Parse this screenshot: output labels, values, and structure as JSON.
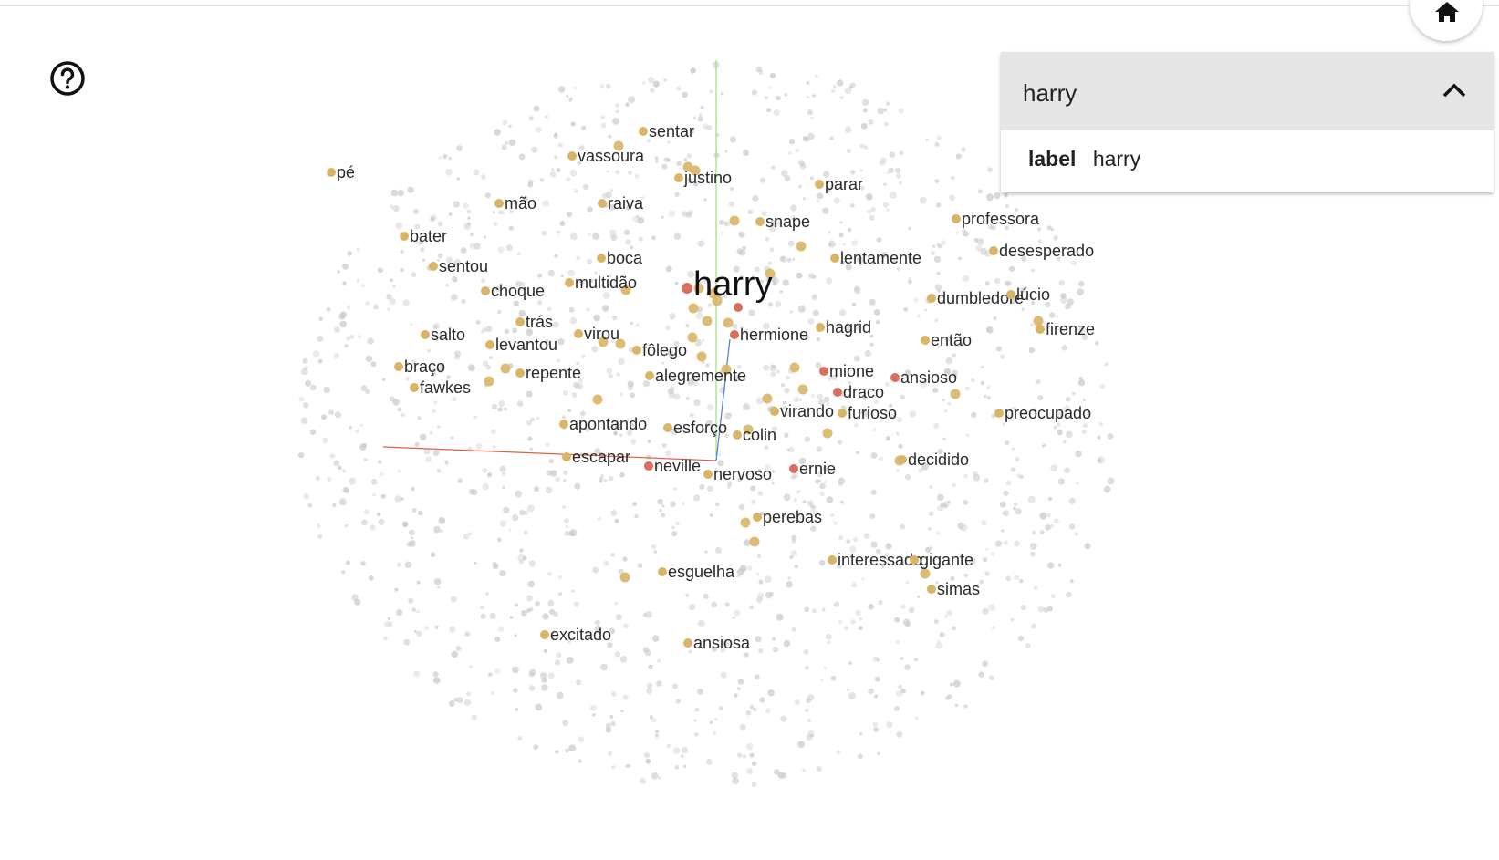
{
  "panel": {
    "title": "harry",
    "field_key": "label",
    "field_value": "harry"
  },
  "icons": {
    "help": "help-circle-icon",
    "home": "home-icon",
    "collapse": "chevron-up-icon"
  },
  "colors": {
    "highlight_point": "#d9b566",
    "selected_point": "#d96f5f",
    "background_point": "#c9c9c9",
    "axis_x": "#e06040",
    "axis_y": "#9be07a",
    "axis_z": "#5577dd"
  },
  "selected_word": "harry",
  "neighbor_words": [
    "pé",
    "sentar",
    "vassoura",
    "justino",
    "parar",
    "mão",
    "raiva",
    "snape",
    "professora",
    "bater",
    "boca",
    "lentamente",
    "desesperado",
    "sentou",
    "multidão",
    "choque",
    "dumbledore",
    "lúcio",
    "trás",
    "hermione",
    "hagrid",
    "firenze",
    "salto",
    "virou",
    "levantou",
    "então",
    "fôlego",
    "braço",
    "repente",
    "alegremente",
    "mione",
    "ansioso",
    "fawkes",
    "draco",
    "virando",
    "furioso",
    "preocupado",
    "apontando",
    "esforço",
    "colin",
    "escapar",
    "decidido",
    "neville",
    "nervoso",
    "ernie",
    "perebas",
    "interessado",
    "gigante",
    "esguelha",
    "simas",
    "excitado",
    "ansiosa"
  ]
}
